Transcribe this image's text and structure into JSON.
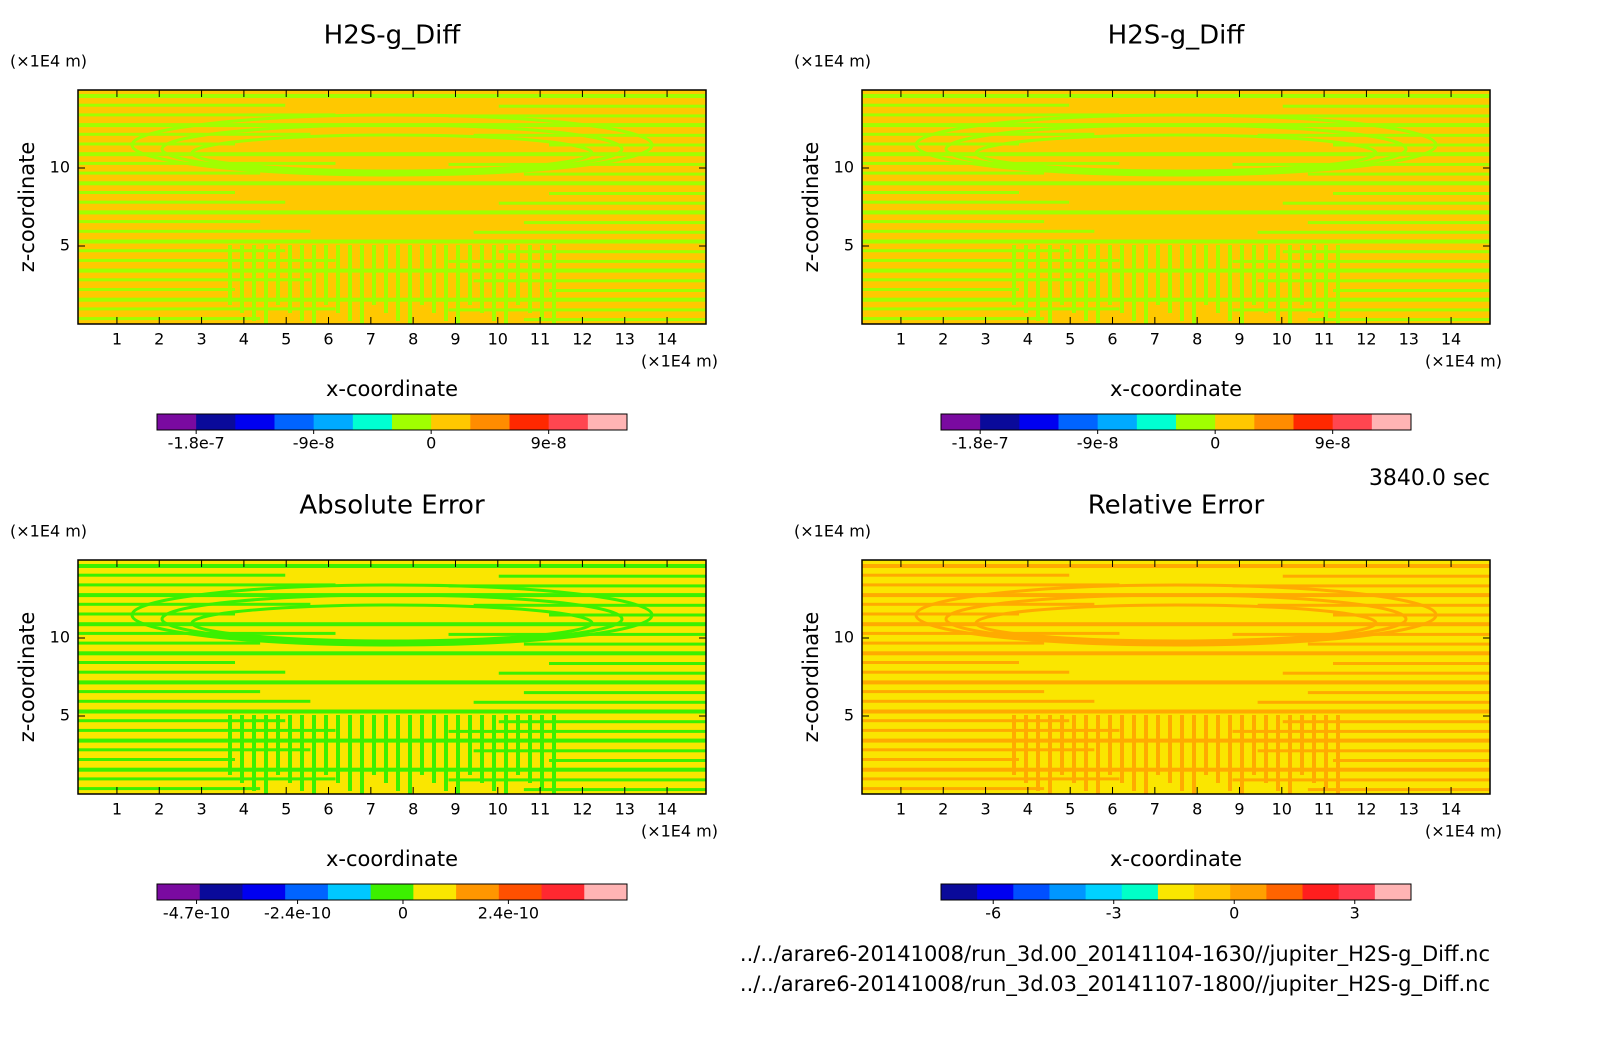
{
  "chart_data": [
    {
      "type": "contour",
      "title": "H2S-g_Diff",
      "x_label": "x-coordinate",
      "y_label": "z-coordinate",
      "x_unit": "(×1E4 m)",
      "y_unit": "(×1E4 m)",
      "xlim": [
        0.08,
        14.92
      ],
      "ylim": [
        0,
        15
      ],
      "xticks": [
        1,
        2,
        3,
        4,
        5,
        6,
        7,
        8,
        9,
        10,
        11,
        12,
        13,
        14
      ],
      "yticks": [
        5,
        10
      ],
      "fill_colors": [
        "#ffc800",
        "#a0ff00"
      ],
      "colorbar": {
        "colors": [
          "#7a0aa0",
          "#0a0a9a",
          "#0000f0",
          "#0064ff",
          "#00aaff",
          "#00ffd2",
          "#a0ff00",
          "#ffc800",
          "#ff8c00",
          "#ff2800",
          "#ff4650",
          "#ffb4b4"
        ],
        "clim": [
          -2.1e-07,
          1.5e-07
        ],
        "ticks": [
          -1.8e-07,
          -9e-08,
          0,
          9e-08
        ]
      }
    },
    {
      "type": "contour",
      "title": "H2S-g_Diff",
      "x_label": "x-coordinate",
      "y_label": "z-coordinate",
      "x_unit": "(×1E4 m)",
      "y_unit": "(×1E4 m)",
      "xlim": [
        0.08,
        14.92
      ],
      "ylim": [
        0,
        15
      ],
      "xticks": [
        1,
        2,
        3,
        4,
        5,
        6,
        7,
        8,
        9,
        10,
        11,
        12,
        13,
        14
      ],
      "yticks": [
        5,
        10
      ],
      "fill_colors": [
        "#ffc800",
        "#a0ff00"
      ],
      "colorbar": {
        "colors": [
          "#7a0aa0",
          "#0a0a9a",
          "#0000f0",
          "#0064ff",
          "#00aaff",
          "#00ffd2",
          "#a0ff00",
          "#ffc800",
          "#ff8c00",
          "#ff2800",
          "#ff4650",
          "#ffb4b4"
        ],
        "clim": [
          -2.1e-07,
          1.5e-07
        ],
        "ticks": [
          -1.8e-07,
          -9e-08,
          0,
          9e-08
        ]
      }
    },
    {
      "type": "contour",
      "title": "Absolute Error",
      "x_label": "x-coordinate",
      "y_label": "z-coordinate",
      "x_unit": "(×1E4 m)",
      "y_unit": "(×1E4 m)",
      "xlim": [
        0.08,
        14.92
      ],
      "ylim": [
        0,
        15
      ],
      "xticks": [
        1,
        2,
        3,
        4,
        5,
        6,
        7,
        8,
        9,
        10,
        11,
        12,
        13,
        14
      ],
      "yticks": [
        5,
        10
      ],
      "fill_colors": [
        "#fae600",
        "#3cf000"
      ],
      "colorbar": {
        "colors": [
          "#7a0aa0",
          "#0a0a9a",
          "#0000f0",
          "#0064ff",
          "#00c8ff",
          "#3cf000",
          "#fae600",
          "#ff9600",
          "#ff5000",
          "#ff2830",
          "#ffb4b4"
        ],
        "clim": [
          -5.6e-10,
          5.1e-10
        ],
        "ticks": [
          -4.7e-10,
          -2.4e-10,
          0,
          2.4e-10
        ]
      }
    },
    {
      "type": "contour",
      "title": "Relative Error",
      "x_label": "x-coordinate",
      "y_label": "z-coordinate",
      "x_unit": "(×1E4 m)",
      "y_unit": "(×1E4 m)",
      "xlim": [
        0.08,
        14.92
      ],
      "ylim": [
        0,
        15
      ],
      "xticks": [
        1,
        2,
        3,
        4,
        5,
        6,
        7,
        8,
        9,
        10,
        11,
        12,
        13,
        14
      ],
      "yticks": [
        5,
        10
      ],
      "fill_colors": [
        "#fae600",
        "#ffaa00"
      ],
      "colorbar": {
        "colors": [
          "#0a0a9a",
          "#0000f0",
          "#0050ff",
          "#0096ff",
          "#00d2ff",
          "#00ffc8",
          "#fae600",
          "#ffc800",
          "#ffa000",
          "#ff6400",
          "#ff1e1e",
          "#ff3c50",
          "#ffb4b4"
        ],
        "clim": [
          -7.3,
          4.4
        ],
        "ticks": [
          -6,
          -3,
          0,
          3
        ]
      }
    }
  ],
  "time_label": "3840.0 sec",
  "files": [
    "../../arare6-20141008/run_3d.00_20141104-1630//jupiter_H2S-g_Diff.nc",
    "../../arare6-20141008/run_3d.03_20141107-1800//jupiter_H2S-g_Diff.nc"
  ]
}
